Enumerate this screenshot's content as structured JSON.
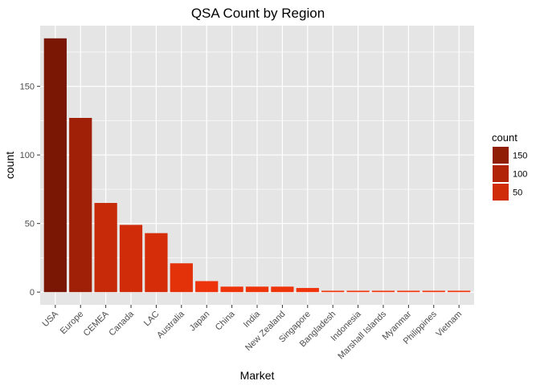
{
  "chart_data": {
    "type": "bar",
    "title": "QSA Count by Region",
    "xlabel": "Market",
    "ylabel": "count",
    "categories": [
      "USA",
      "Europe",
      "CEMEA",
      "Canada",
      "LAC",
      "Australia",
      "Japan",
      "China",
      "India",
      "New Zealand",
      "Singapore",
      "Bangladesh",
      "Indonesia",
      "Marshall Islands",
      "Myanmar",
      "Philippines",
      "Vietnam"
    ],
    "values": [
      185,
      127,
      65,
      49,
      43,
      21,
      8,
      4,
      4,
      4,
      3,
      1,
      1,
      1,
      1,
      1,
      1
    ],
    "ylim": [
      -9.25,
      194.25
    ],
    "yticks": [
      0,
      50,
      100,
      150
    ],
    "ytick_labels": [
      "0",
      "50",
      "100",
      "150"
    ],
    "grid": true,
    "legend": {
      "title": "count",
      "position": "right",
      "entries": [
        {
          "label": "150",
          "value": 150
        },
        {
          "label": "100",
          "value": 100
        },
        {
          "label": "50",
          "value": 50
        }
      ]
    },
    "color_scale": {
      "low": "#F0340B",
      "high": "#7A1704",
      "min": 1,
      "max": 185
    },
    "panel_background": "#E5E5E5",
    "grid_color": "#FFFFFF"
  }
}
